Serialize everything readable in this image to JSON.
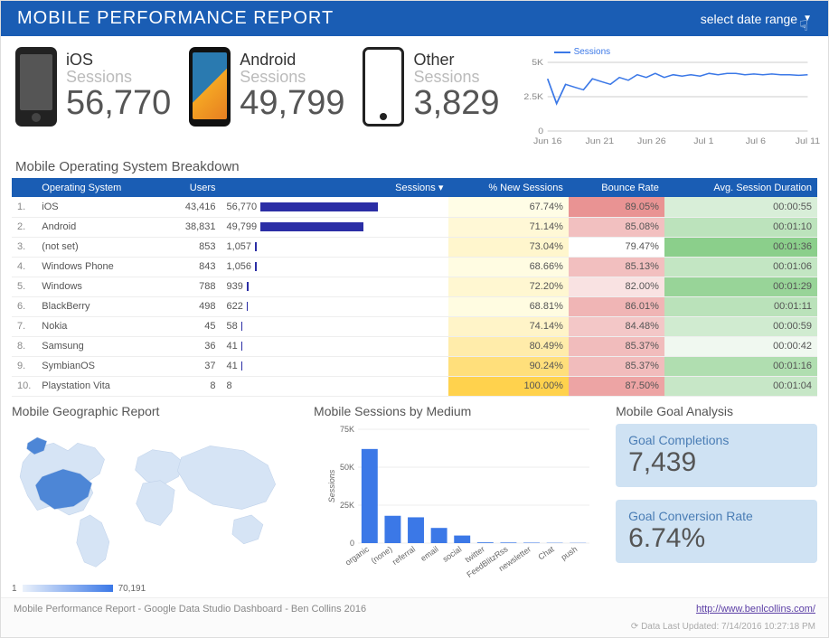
{
  "header": {
    "title": "MOBILE PERFORMANCE REPORT",
    "date_range_label": "select date range",
    "bg_color": "#1a5db4"
  },
  "kpis": {
    "ios": {
      "label": "iOS",
      "sublabel": "Sessions",
      "value": "56,770"
    },
    "android": {
      "label": "Android",
      "sublabel": "Sessions",
      "value": "49,799"
    },
    "other": {
      "label": "Other",
      "sublabel": "Sessions",
      "value": "3,829"
    }
  },
  "sparkline": {
    "legend": "Sessions",
    "color": "#3b78e7",
    "y_ticks": [
      "0",
      "2.5K",
      "5K"
    ],
    "x_labels": [
      "Jun 16",
      "Jun 21",
      "Jun 26",
      "Jul 1",
      "Jul 6",
      "Jul 11"
    ],
    "ymax": 5000,
    "points": [
      3800,
      2000,
      3400,
      3200,
      3000,
      3800,
      3600,
      3400,
      3900,
      3700,
      4100,
      3900,
      4200,
      3900,
      4100,
      4000,
      4100,
      4000,
      4200,
      4100,
      4200,
      4200,
      4100,
      4150,
      4100,
      4150,
      4100,
      4100,
      4050,
      4100
    ]
  },
  "breakdown": {
    "title": "Mobile Operating System Breakdown",
    "columns": [
      "",
      "Operating System",
      "Users",
      "Sessions ▾",
      "% New Sessions",
      "Bounce Rate",
      "Avg. Session Duration"
    ],
    "bar_max": 56770,
    "bar_color": "#2b2ea5",
    "heat_newsessions_colors": {
      "low": "#fffde6",
      "high": "#ffd24d"
    },
    "heat_bounce_colors": {
      "low": "#ffffff",
      "high": "#e99393"
    },
    "heat_duration_colors": {
      "low": "#f0f8f0",
      "high": "#8bcf8b"
    },
    "rows": [
      {
        "idx": "1.",
        "os": "iOS",
        "users": "43,416",
        "sessions": 56770,
        "sessions_label": "56,770",
        "new": 67.74,
        "bounce": 89.05,
        "dur_s": 55,
        "dur": "00:00:55"
      },
      {
        "idx": "2.",
        "os": "Android",
        "users": "38,831",
        "sessions": 49799,
        "sessions_label": "49,799",
        "new": 71.14,
        "bounce": 85.08,
        "dur_s": 70,
        "dur": "00:01:10"
      },
      {
        "idx": "3.",
        "os": "(not set)",
        "users": "853",
        "sessions": 1057,
        "sessions_label": "1,057",
        "new": 73.04,
        "bounce": 79.47,
        "dur_s": 96,
        "dur": "00:01:36"
      },
      {
        "idx": "4.",
        "os": "Windows Phone",
        "users": "843",
        "sessions": 1056,
        "sessions_label": "1,056",
        "new": 68.66,
        "bounce": 85.13,
        "dur_s": 66,
        "dur": "00:01:06"
      },
      {
        "idx": "5.",
        "os": "Windows",
        "users": "788",
        "sessions": 939,
        "sessions_label": "939",
        "new": 72.2,
        "bounce": 82.0,
        "dur_s": 89,
        "dur": "00:01:29"
      },
      {
        "idx": "6.",
        "os": "BlackBerry",
        "users": "498",
        "sessions": 622,
        "sessions_label": "622",
        "new": 68.81,
        "bounce": 86.01,
        "dur_s": 71,
        "dur": "00:01:11"
      },
      {
        "idx": "7.",
        "os": "Nokia",
        "users": "45",
        "sessions": 58,
        "sessions_label": "58",
        "new": 74.14,
        "bounce": 84.48,
        "dur_s": 59,
        "dur": "00:00:59"
      },
      {
        "idx": "8.",
        "os": "Samsung",
        "users": "36",
        "sessions": 41,
        "sessions_label": "41",
        "new": 80.49,
        "bounce": 85.37,
        "dur_s": 42,
        "dur": "00:00:42"
      },
      {
        "idx": "9.",
        "os": "SymbianOS",
        "users": "37",
        "sessions": 41,
        "sessions_label": "41",
        "new": 90.24,
        "bounce": 85.37,
        "dur_s": 76,
        "dur": "00:01:16"
      },
      {
        "idx": "10.",
        "os": "Playstation Vita",
        "users": "8",
        "sessions": 8,
        "sessions_label": "8",
        "new": 100.0,
        "bounce": 87.5,
        "dur_s": 64,
        "dur": "00:01:04"
      }
    ]
  },
  "geo": {
    "title": "Mobile Geographic Report",
    "legend_min": "1",
    "legend_max": "70,191",
    "base_color": "#eaf1fb",
    "highlight_color": "#4d86d6"
  },
  "medium_chart": {
    "title": "Mobile Sessions by Medium",
    "ylabel": "Sessions",
    "y_ticks": [
      "0",
      "25K",
      "50K",
      "75K"
    ],
    "ymax": 75000,
    "bar_color": "#3b78e7",
    "categories": [
      "organic",
      "(none)",
      "referral",
      "email",
      "social",
      "twitter",
      "FeedBlitzRss",
      "newsletter",
      "Chat",
      "push"
    ],
    "values": [
      62000,
      18000,
      17000,
      10000,
      5000,
      500,
      400,
      300,
      200,
      150
    ]
  },
  "goals": {
    "title": "Mobile Goal Analysis",
    "completions_label": "Goal Completions",
    "completions_value": "7,439",
    "conversion_label": "Goal Conversion Rate",
    "conversion_value": "6.74%",
    "card_bg": "#cfe2f3",
    "label_color": "#4a7db5"
  },
  "footer": {
    "text": "Mobile Performance Report - Google Data Studio Dashboard - Ben Collins 2016",
    "link_text": "http://www.benlcollins.com/",
    "updated": "Data Last Updated: 7/14/2016 10:27:18 PM"
  }
}
